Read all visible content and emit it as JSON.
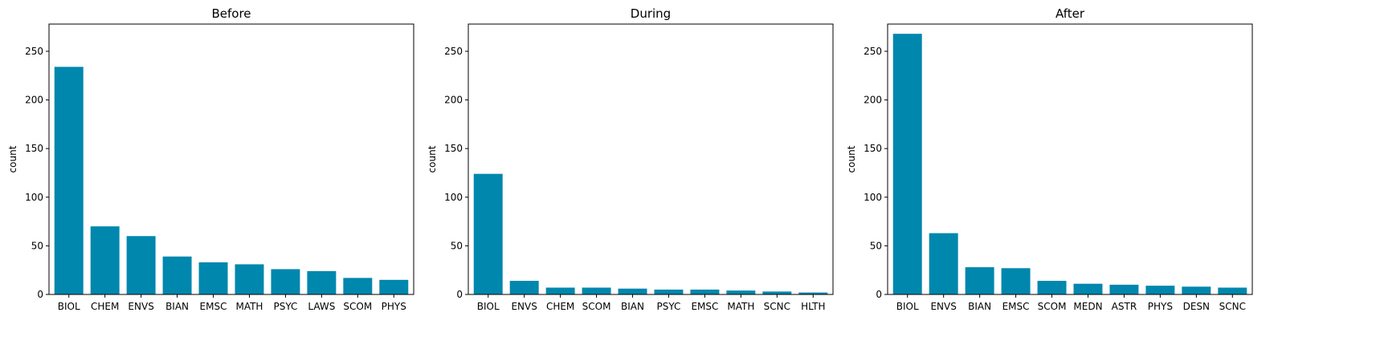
{
  "colors": {
    "bar": "#0087ad",
    "axis": "#000000"
  },
  "chart_data": [
    {
      "type": "bar",
      "title": "Before",
      "ylabel": "count",
      "xlabel": "",
      "ylim": [
        0,
        278
      ],
      "yticks": [
        0,
        50,
        100,
        150,
        200,
        250
      ],
      "grid": false,
      "categories": [
        "BIOL",
        "CHEM",
        "ENVS",
        "BIAN",
        "EMSC",
        "MATH",
        "PSYC",
        "LAWS",
        "SCOM",
        "PHYS"
      ],
      "values": [
        234,
        70,
        60,
        39,
        33,
        31,
        26,
        24,
        17,
        15
      ]
    },
    {
      "type": "bar",
      "title": "During",
      "ylabel": "count",
      "xlabel": "",
      "ylim": [
        0,
        278
      ],
      "yticks": [
        0,
        50,
        100,
        150,
        200,
        250
      ],
      "grid": false,
      "categories": [
        "BIOL",
        "ENVS",
        "CHEM",
        "SCOM",
        "BIAN",
        "PSYC",
        "EMSC",
        "MATH",
        "SCNC",
        "HLTH"
      ],
      "values": [
        124,
        14,
        7,
        7,
        6,
        5,
        5,
        4,
        3,
        2
      ]
    },
    {
      "type": "bar",
      "title": "After",
      "ylabel": "count",
      "xlabel": "",
      "ylim": [
        0,
        278
      ],
      "yticks": [
        0,
        50,
        100,
        150,
        200,
        250
      ],
      "grid": false,
      "categories": [
        "BIOL",
        "ENVS",
        "BIAN",
        "EMSC",
        "SCOM",
        "MEDN",
        "ASTR",
        "PHYS",
        "DESN",
        "SCNC"
      ],
      "values": [
        268,
        63,
        28,
        27,
        14,
        11,
        10,
        9,
        8,
        7
      ]
    }
  ]
}
